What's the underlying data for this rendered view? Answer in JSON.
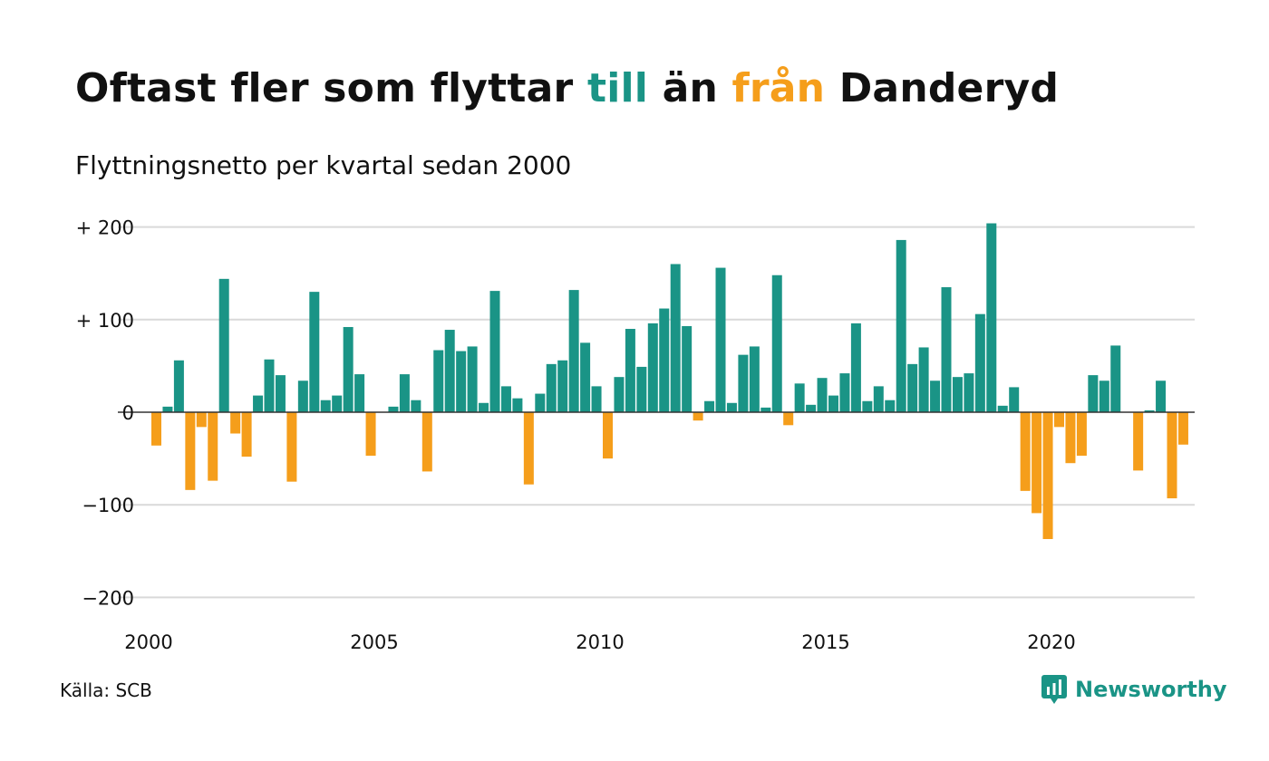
{
  "title": {
    "part1": "Oftast fler som flyttar ",
    "highlight_in": "till",
    "part2": " än ",
    "highlight_out": "från",
    "part3": " Danderyd"
  },
  "subtitle": "Flyttningsnetto per kvartal sedan 2000",
  "source": "Källa: SCB",
  "brand": "Newsworthy",
  "colors": {
    "positive": "#1a9486",
    "negative": "#f59e1b",
    "grid": "#d9d9d9",
    "text": "#111111"
  },
  "chart_data": {
    "type": "bar",
    "title": "Oftast fler som flyttar till än från Danderyd",
    "subtitle": "Flyttningsnetto per kvartal sedan 2000",
    "ylim": [
      -200,
      200
    ],
    "yticks": [
      {
        "value": 200,
        "label": "+ 200"
      },
      {
        "value": 100,
        "label": "+ 100"
      },
      {
        "value": 0,
        "label": "0"
      },
      {
        "value": -100,
        "label": "−100"
      },
      {
        "value": -200,
        "label": "−200"
      }
    ],
    "xticks": [
      {
        "year": 2000,
        "label": "2000"
      },
      {
        "year": 2005,
        "label": "2005"
      },
      {
        "year": 2010,
        "label": "2010"
      },
      {
        "year": 2015,
        "label": "2015"
      },
      {
        "year": 2020,
        "label": "2020"
      }
    ],
    "start_year": 2000,
    "start_quarter": 1,
    "values": [
      -36,
      6,
      56,
      -84,
      -16,
      -74,
      144,
      -23,
      -48,
      18,
      57,
      40,
      -75,
      34,
      130,
      13,
      18,
      92,
      41,
      -47,
      0,
      6,
      41,
      13,
      -64,
      67,
      89,
      66,
      71,
      10,
      131,
      28,
      15,
      -78,
      20,
      52,
      56,
      132,
      75,
      28,
      -50,
      38,
      90,
      49,
      96,
      112,
      160,
      93,
      -9,
      12,
      156,
      10,
      62,
      71,
      5,
      148,
      -14,
      31,
      8,
      37,
      18,
      42,
      96,
      12,
      28,
      13,
      186,
      52,
      70,
      34,
      135,
      38,
      42,
      106,
      204,
      7,
      27,
      -85,
      -109,
      -137,
      -16,
      -55,
      -47,
      40,
      34,
      72,
      0,
      -63,
      2,
      34,
      -93,
      -35
    ]
  }
}
